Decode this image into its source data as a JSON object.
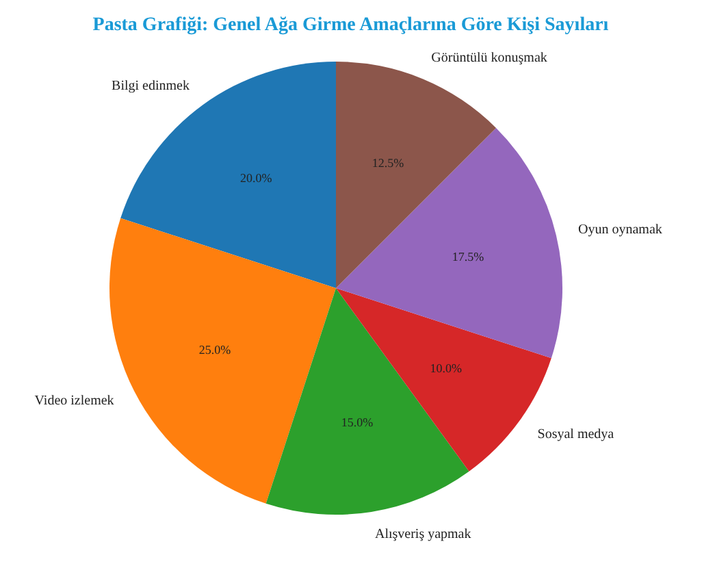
{
  "chart_data": {
    "type": "pie",
    "title": "Pasta Grafiği: Genel Ağa Girme Amaçlarına Göre Kişi Sayıları",
    "categories": [
      "Bilgi edinmek",
      "Video izlemek",
      "Alışveriş yapmak",
      "Sosyal medya",
      "Oyun oynamak",
      "Görüntülü konuşmak"
    ],
    "values": [
      20,
      25,
      15,
      10,
      17.5,
      12.5
    ],
    "value_labels": [
      "20.0%",
      "25.0%",
      "15.0%",
      "10.0%",
      "17.5%",
      "12.5%"
    ],
    "colors": [
      "#1f77b4",
      "#ff7f0e",
      "#2ca02c",
      "#d62728",
      "#9467bd",
      "#8c564b"
    ]
  }
}
